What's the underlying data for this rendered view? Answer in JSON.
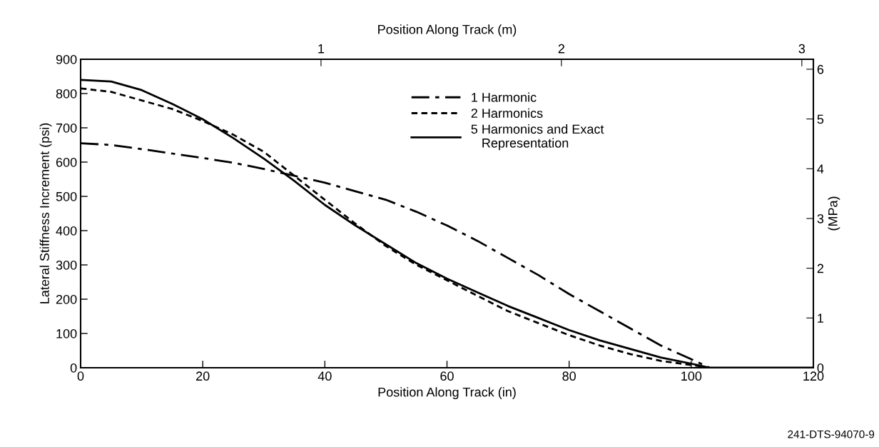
{
  "chart_data": {
    "type": "line",
    "xlabel": "Position Along Track (in)",
    "ylabel": "Lateral Stiffness Increment (psi)",
    "y2label": "(MPa)",
    "x2label": "Position Along Track (m)",
    "xlim": [
      0,
      120
    ],
    "xticks": [
      0,
      20,
      40,
      60,
      80,
      100,
      120
    ],
    "ylim": [
      0,
      900
    ],
    "yticks": [
      0,
      100,
      200,
      300,
      400,
      500,
      600,
      700,
      800,
      900
    ],
    "y2lim": [
      0,
      6.2
    ],
    "y2ticks": [
      0,
      1,
      2,
      3,
      4,
      5,
      6
    ],
    "x2lim": [
      0,
      3.048
    ],
    "x2ticks": [
      1,
      2,
      3
    ],
    "grid": false,
    "legend": "top right",
    "marker": "none",
    "annotations": [
      "241-DTS-94070-9"
    ],
    "series": [
      {
        "name": "1 Harmonic",
        "color": "#000000",
        "line_style": "dashdot",
        "x": [
          0,
          5,
          10,
          15,
          20,
          25,
          30,
          35,
          40,
          45,
          50,
          55,
          60,
          65,
          70,
          75,
          80,
          85,
          90,
          95,
          100,
          103
        ],
        "values": [
          655,
          650,
          638,
          625,
          612,
          598,
          580,
          560,
          540,
          515,
          490,
          455,
          415,
          370,
          320,
          270,
          215,
          165,
          115,
          65,
          25,
          0
        ]
      },
      {
        "name": "2 Harmonics",
        "color": "#000000",
        "line_style": "dashed",
        "x": [
          0,
          5,
          10,
          15,
          20,
          25,
          30,
          35,
          40,
          45,
          50,
          55,
          60,
          65,
          70,
          75,
          80,
          85,
          90,
          95,
          100,
          103
        ],
        "values": [
          815,
          805,
          780,
          755,
          720,
          680,
          630,
          560,
          490,
          420,
          355,
          300,
          255,
          210,
          165,
          130,
          95,
          65,
          40,
          20,
          8,
          0
        ]
      },
      {
        "name": "5 Harmonics and Exact\n   Representation",
        "color": "#000000",
        "line_style": "solid",
        "x": [
          0,
          5,
          10,
          15,
          20,
          25,
          30,
          35,
          40,
          45,
          50,
          55,
          60,
          65,
          70,
          75,
          80,
          85,
          90,
          95,
          100,
          103,
          120
        ],
        "values": [
          840,
          835,
          810,
          770,
          725,
          670,
          610,
          545,
          475,
          415,
          360,
          305,
          260,
          220,
          180,
          145,
          110,
          80,
          55,
          30,
          12,
          0,
          0
        ]
      }
    ]
  }
}
